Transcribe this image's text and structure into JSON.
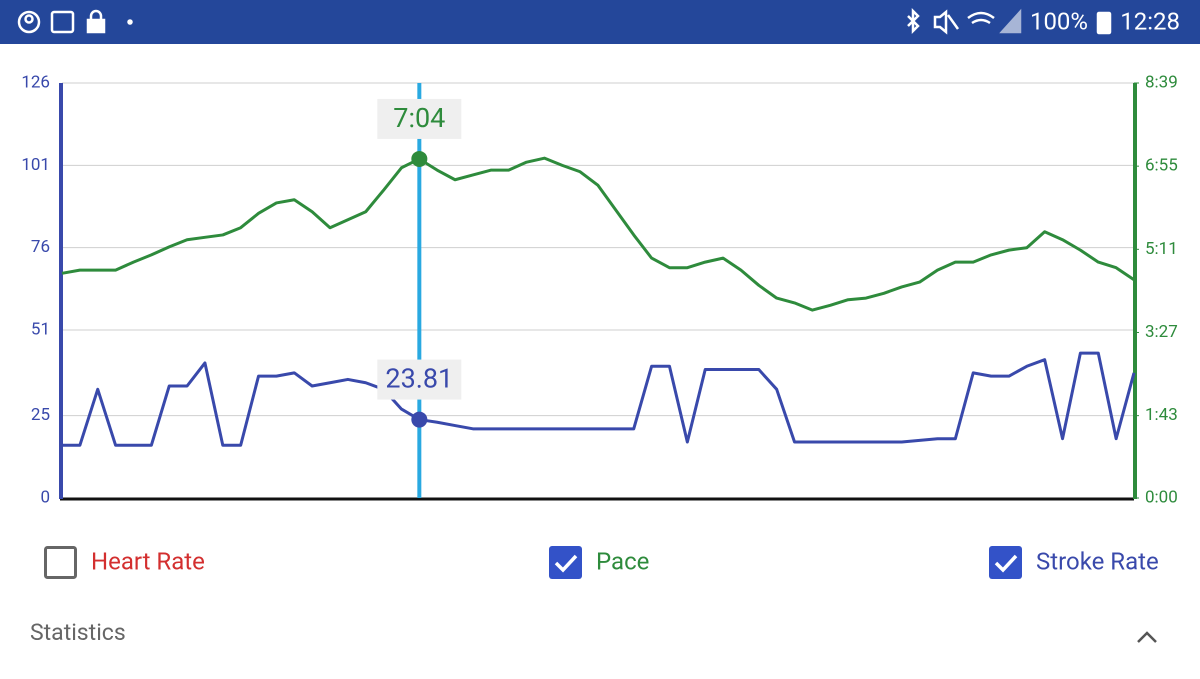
{
  "status_bar": {
    "battery": "100%",
    "time": "12:28"
  },
  "chart_data": {
    "type": "line",
    "categories": [
      null,
      null,
      null,
      null,
      null,
      null,
      null,
      null,
      null,
      null,
      null,
      null,
      null,
      null,
      null,
      null,
      null,
      null,
      null,
      null,
      null,
      null,
      null,
      null,
      null,
      null,
      null,
      null,
      null,
      null,
      null,
      null,
      null,
      null,
      null,
      null,
      null,
      null,
      null,
      null,
      null,
      null,
      null,
      null,
      null,
      null,
      null,
      null,
      null,
      null,
      null,
      null,
      null,
      null,
      null,
      null,
      null,
      null,
      null,
      null,
      null
    ],
    "ylim": [
      0,
      126
    ],
    "yticks": [
      0,
      25,
      51,
      76,
      101,
      126
    ],
    "y2lim": [
      0,
      519
    ],
    "y2ticks": [
      {
        "value": 0,
        "label": "0:00"
      },
      {
        "value": 103,
        "label": "1:43"
      },
      {
        "value": 207,
        "label": "3:27"
      },
      {
        "value": 311,
        "label": "5:11"
      },
      {
        "value": 415,
        "label": "6:55"
      },
      {
        "value": 519,
        "label": "8:39"
      }
    ],
    "grid": true,
    "cursor_index": 20,
    "series": [
      {
        "name": "Stroke Rate",
        "color": "#3949ab",
        "checked": true,
        "axis": "y",
        "values": [
          16,
          16,
          33,
          16,
          16,
          16,
          34,
          34,
          41,
          16,
          16,
          37,
          37,
          38,
          34,
          35,
          36,
          35,
          33,
          27,
          23.81,
          23,
          22,
          21,
          21,
          21,
          21,
          21,
          21,
          21,
          21,
          21,
          21,
          40,
          40,
          17,
          39,
          39,
          39,
          39,
          33,
          17,
          17,
          17,
          17,
          17,
          17,
          17,
          17.5,
          18,
          18,
          38,
          37,
          37,
          40,
          42,
          18,
          44,
          44,
          18,
          38
        ]
      },
      {
        "name": "Pace",
        "color": "#2e8b3c",
        "checked": true,
        "axis": "y2",
        "values": [
          281,
          285,
          285,
          285,
          295,
          304,
          314,
          323,
          326,
          329,
          338,
          356,
          369,
          373,
          358,
          338,
          348,
          358,
          385,
          413,
          424,
          410,
          398,
          404,
          410,
          410,
          420,
          425,
          416,
          408,
          391,
          360,
          329,
          300,
          288,
          288,
          295,
          300,
          285,
          266,
          250,
          244,
          235,
          241,
          248,
          250,
          256,
          264,
          270,
          285,
          295,
          295,
          304,
          310,
          313,
          333,
          323,
          310,
          295,
          288,
          273
        ],
        "value_labels": [
          null,
          null,
          null,
          null,
          null,
          null,
          null,
          null,
          null,
          null,
          null,
          null,
          null,
          null,
          null,
          null,
          null,
          null,
          null,
          null,
          "7:04",
          null,
          null,
          null,
          null,
          null,
          null,
          null,
          null,
          null,
          null,
          null,
          null,
          null,
          null,
          null,
          null,
          null,
          null,
          null,
          null,
          null,
          null,
          null,
          null,
          null,
          null,
          null,
          null,
          null,
          null,
          null,
          null,
          null,
          null,
          null,
          null,
          null,
          null,
          null,
          null
        ]
      },
      {
        "name": "Heart Rate",
        "color": "#d32f2f",
        "checked": false,
        "axis": "y",
        "values": [
          null,
          null,
          null,
          null,
          null,
          null,
          null,
          null,
          null,
          null,
          null,
          null,
          null,
          null,
          null,
          null,
          null,
          null,
          null,
          null,
          null,
          null,
          null,
          null,
          null,
          null,
          null,
          null,
          null,
          null,
          null,
          null,
          null,
          null,
          null,
          null,
          null,
          null,
          null,
          null,
          null,
          null,
          null,
          null,
          null,
          null,
          null,
          null,
          null,
          null,
          null,
          null,
          null,
          null,
          null,
          null,
          null,
          null,
          null,
          null,
          null
        ]
      }
    ]
  },
  "statistics": {
    "title": "Statistics"
  }
}
